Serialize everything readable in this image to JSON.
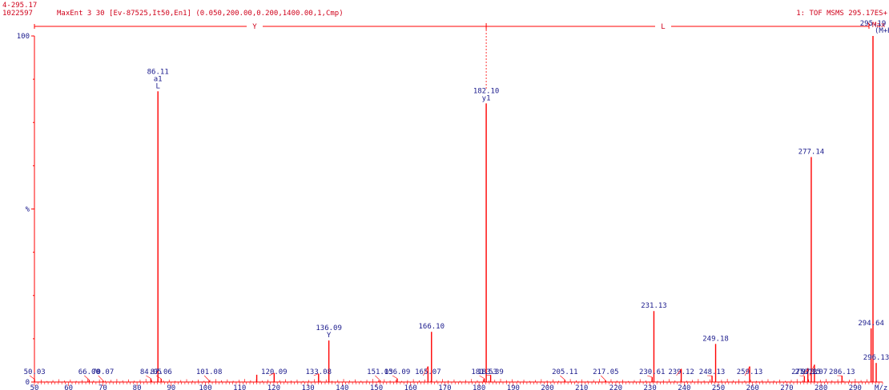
{
  "header": {
    "range": "4-295.17",
    "scan_id": "1022597",
    "method": "MaxEnt 3  30 [Ev-87525,It50,En1] (0.050,200.00,0.200,1400.00,1,Cmp)",
    "function": "1: TOF MSMS 295.17ES+",
    "max_marker": "Max"
  },
  "sequence": {
    "left_label": "Y",
    "right_label": "L"
  },
  "colors": {
    "peak": "#ff0000",
    "axis": "#ff0000",
    "peak_label": "#1a1a8c",
    "header_text": "#d0021b",
    "tick_text": "#1a1a8c"
  },
  "chart_data": {
    "type": "bar",
    "title": "",
    "xlabel": "M/z",
    "ylabel": "%",
    "xlim": [
      50,
      298
    ],
    "ylim": [
      0,
      100
    ],
    "x_ticks": [
      50,
      60,
      70,
      80,
      90,
      100,
      110,
      120,
      130,
      140,
      150,
      160,
      170,
      180,
      190,
      200,
      210,
      220,
      230,
      240,
      250,
      260,
      270,
      280,
      290
    ],
    "y_ticks": [
      0,
      100
    ],
    "y_tick_labels": [
      "0",
      "100"
    ],
    "y_mid_label": "%",
    "peaks": [
      {
        "mz": 50.03,
        "intensity": 0.8,
        "label": "50.03"
      },
      {
        "mz": 66.0,
        "intensity": 0.6,
        "label": "66.00"
      },
      {
        "mz": 70.07,
        "intensity": 0.4,
        "label": "70.07"
      },
      {
        "mz": 84.05,
        "intensity": 1.0,
        "label": "84.05"
      },
      {
        "mz": 86.11,
        "intensity": 84.0,
        "label": "86.11",
        "annotations": [
          "a1",
          "L"
        ]
      },
      {
        "mz": 87.06,
        "intensity": 0.9,
        "label": "87.06"
      },
      {
        "mz": 101.08,
        "intensity": 0.4,
        "label": "101.08"
      },
      {
        "mz": 115.0,
        "intensity": 2.1,
        "label": ""
      },
      {
        "mz": 120.09,
        "intensity": 2.6,
        "label": "120.09"
      },
      {
        "mz": 133.08,
        "intensity": 2.4,
        "label": "133.08"
      },
      {
        "mz": 136.09,
        "intensity": 12.0,
        "label": "136.09",
        "annotations": [
          "Y"
        ]
      },
      {
        "mz": 151.03,
        "intensity": 0.5,
        "label": "151.03"
      },
      {
        "mz": 156.09,
        "intensity": 1.0,
        "label": "156.09"
      },
      {
        "mz": 165.07,
        "intensity": 4.5,
        "label": "165.07"
      },
      {
        "mz": 166.1,
        "intensity": 14.5,
        "label": "166.10"
      },
      {
        "mz": 181.53,
        "intensity": 1.0,
        "label": "181.53"
      },
      {
        "mz": 182.1,
        "intensity": 80.5,
        "label": "182.10",
        "annotations": [
          "y1"
        ]
      },
      {
        "mz": 183.39,
        "intensity": 2.0,
        "label": "183.39"
      },
      {
        "mz": 205.11,
        "intensity": 0.6,
        "label": "205.11"
      },
      {
        "mz": 217.05,
        "intensity": 0.4,
        "label": "217.05"
      },
      {
        "mz": 230.61,
        "intensity": 1.4,
        "label": "230.61"
      },
      {
        "mz": 231.13,
        "intensity": 20.5,
        "label": "231.13"
      },
      {
        "mz": 239.12,
        "intensity": 3.8,
        "label": "239.12"
      },
      {
        "mz": 248.13,
        "intensity": 1.8,
        "label": "248.13"
      },
      {
        "mz": 249.18,
        "intensity": 11.0,
        "label": "249.18"
      },
      {
        "mz": 259.13,
        "intensity": 4.5,
        "label": "259.13"
      },
      {
        "mz": 275.13,
        "intensity": 1.7,
        "label": "275.13"
      },
      {
        "mz": 276.15,
        "intensity": 4.0,
        "label": "276.15"
      },
      {
        "mz": 277.14,
        "intensity": 65.0,
        "label": "277.14"
      },
      {
        "mz": 278.07,
        "intensity": 5.0,
        "label": "278.07"
      },
      {
        "mz": 286.13,
        "intensity": 1.8,
        "label": "286.13"
      },
      {
        "mz": 294.64,
        "intensity": 15.5,
        "label": "294.64"
      },
      {
        "mz": 295.19,
        "intensity": 100.0,
        "label": "295.19",
        "annotations": [
          "(M+H)+"
        ]
      },
      {
        "mz": 296.13,
        "intensity": 5.5,
        "label": "296.13"
      }
    ],
    "sequence_markers": [
      {
        "mz": 182.1,
        "style": "dashed"
      }
    ],
    "grid": false
  }
}
